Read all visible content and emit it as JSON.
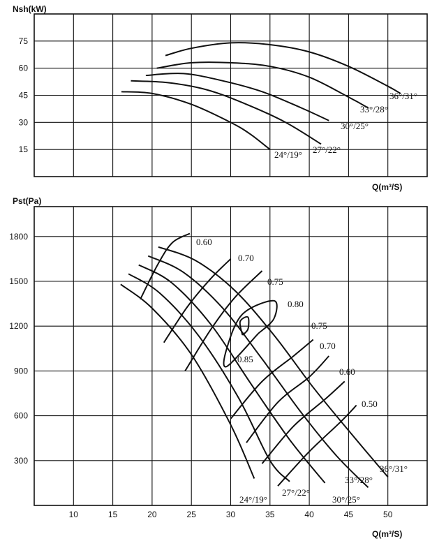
{
  "chart_data": [
    {
      "type": "line",
      "title": "",
      "ylabel": "Nsh(kW)",
      "xlabel": "Q(m³/S)",
      "xlim": [
        5,
        55
      ],
      "ylim": [
        0,
        90
      ],
      "x_ticks": [
        5,
        10,
        15,
        20,
        25,
        30,
        35,
        40,
        45,
        50,
        55
      ],
      "y_ticks": [
        15,
        30,
        45,
        60,
        75
      ],
      "y_tick_labels": [
        "15",
        "30",
        "45",
        "60",
        "75"
      ],
      "grid": true,
      "series": [
        {
          "name": "24°/19°",
          "x": [
            16.1,
            20,
            25,
            30,
            32.5,
            35
          ],
          "y": [
            47,
            46,
            40,
            30,
            23.5,
            15
          ]
        },
        {
          "name": "27°/22°",
          "x": [
            17.3,
            22,
            27,
            32,
            37,
            41.5
          ],
          "y": [
            53,
            52,
            48,
            40,
            30,
            18
          ]
        },
        {
          "name": "30°/25°",
          "x": [
            19.2,
            24,
            29,
            34,
            39,
            42.5
          ],
          "y": [
            56,
            57,
            53,
            47,
            38,
            31
          ]
        },
        {
          "name": "33°/28°",
          "x": [
            20.6,
            25,
            30,
            35,
            40,
            45,
            47.5
          ],
          "y": [
            60,
            63,
            63,
            61,
            55,
            44,
            38
          ]
        },
        {
          "name": "36°/31°",
          "x": [
            21.7,
            25,
            30,
            35,
            40,
            45,
            50,
            51.6
          ],
          "y": [
            67,
            71,
            74,
            73,
            69,
            61,
            50,
            46
          ]
        }
      ]
    },
    {
      "type": "line",
      "title": "",
      "ylabel": "Pst(Pa)",
      "xlabel": "Q(m³/S)",
      "xlim": [
        5,
        55
      ],
      "ylim": [
        0,
        2000
      ],
      "x_ticks": [
        10,
        15,
        20,
        25,
        30,
        35,
        40,
        45,
        50
      ],
      "x_tick_labels": [
        "10",
        "15",
        "20",
        "25",
        "30",
        "35",
        "40",
        "45",
        "50"
      ],
      "y_ticks": [
        300,
        600,
        900,
        1200,
        1500,
        1800
      ],
      "y_tick_labels": [
        "300",
        "600",
        "900",
        "1200",
        "1500",
        "1800"
      ],
      "grid": true,
      "series": [
        {
          "name": "24°/19°",
          "x": [
            16,
            20,
            25,
            30,
            33
          ],
          "y": [
            1480,
            1320,
            1010,
            540,
            180
          ]
        },
        {
          "name": "27°/22°",
          "x": [
            17,
            21,
            26,
            31,
            35,
            37.5
          ],
          "y": [
            1550,
            1420,
            1130,
            720,
            300,
            160
          ]
        },
        {
          "name": "30°/25°",
          "x": [
            18.3,
            22.5,
            27.5,
            32.5,
            37.5,
            42
          ],
          "y": [
            1610,
            1490,
            1210,
            820,
            440,
            150
          ]
        },
        {
          "name": "33°/28°",
          "x": [
            19.5,
            24,
            29,
            34,
            39,
            43.5,
            47.5
          ],
          "y": [
            1670,
            1560,
            1320,
            980,
            620,
            330,
            120
          ]
        },
        {
          "name": "36°/31°",
          "x": [
            20.8,
            25.5,
            30.5,
            35.5,
            40.5,
            45.5,
            50
          ],
          "y": [
            1730,
            1640,
            1440,
            1140,
            790,
            470,
            190
          ]
        }
      ],
      "efficiency_contours": [
        {
          "label": "0.60",
          "value": 0.6,
          "x": [
            18.5,
            20.8,
            22.6,
            24.8
          ],
          "y": [
            1380,
            1620,
            1760,
            1820
          ]
        },
        {
          "label": "0.70",
          "value": 0.7,
          "x": [
            21.5,
            24.5,
            27.5,
            30
          ],
          "y": [
            1090,
            1330,
            1520,
            1650
          ]
        },
        {
          "label": "0.75",
          "value": 0.75,
          "x": [
            24.2,
            27.5,
            30.5,
            34
          ],
          "y": [
            900,
            1180,
            1390,
            1570
          ]
        },
        {
          "label": "0.80",
          "value": 0.8,
          "x": [
            33.5,
            35.5,
            35.5,
            31.5,
            29.5,
            29.5,
            33.5
          ],
          "y": [
            1150,
            1250,
            1370,
            1280,
            1050,
            930,
            1150
          ]
        },
        {
          "label": "0.85",
          "value": 0.85,
          "x": [
            31.5,
            32.2,
            32.2,
            31.2,
            31.5
          ],
          "y": [
            1140,
            1180,
            1260,
            1230,
            1140
          ]
        },
        {
          "label": "0.75",
          "value": 0.75,
          "x": [
            30,
            34,
            38,
            40.5
          ],
          "y": [
            580,
            830,
            1000,
            1110
          ]
        },
        {
          "label": "0.70",
          "value": 0.7,
          "x": [
            32,
            36,
            40,
            42.5
          ],
          "y": [
            420,
            690,
            860,
            1000
          ]
        },
        {
          "label": "0.60",
          "value": 0.6,
          "x": [
            34,
            38,
            42,
            44.5
          ],
          "y": [
            280,
            530,
            710,
            830
          ]
        },
        {
          "label": "0.50",
          "value": 0.5,
          "x": [
            36,
            40,
            44,
            46
          ],
          "y": [
            130,
            360,
            560,
            670
          ]
        }
      ]
    }
  ]
}
